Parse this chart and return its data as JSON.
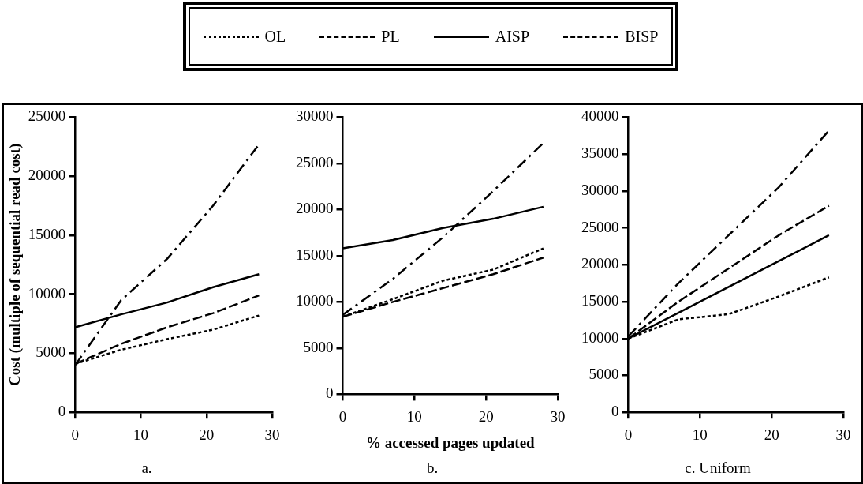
{
  "chart_data": [
    {
      "type": "line",
      "title": "a.",
      "ylabel": "Cost (multiple of sequential read cost)",
      "xlim": [
        0,
        30
      ],
      "xticks": [
        0,
        10,
        20,
        30
      ],
      "ylim": [
        0,
        25000
      ],
      "yticks": [
        0,
        5000,
        10000,
        15000,
        20000,
        25000
      ],
      "grid": false,
      "legend": "top",
      "marker": "none",
      "series": [
        {
          "name": "OL",
          "color": "#000000",
          "line_style": "dotted",
          "x": [
            0,
            7,
            14,
            21,
            28
          ],
          "values": [
            4100,
            5300,
            6200,
            7000,
            8200
          ]
        },
        {
          "name": "PL",
          "color": "#000000",
          "line_style": "dashed",
          "x": [
            0,
            7,
            14,
            21,
            28
          ],
          "values": [
            4100,
            5800,
            7200,
            8400,
            9900
          ]
        },
        {
          "name": "AISP",
          "color": "#000000",
          "line_style": "solid",
          "x": [
            0,
            7,
            14,
            21,
            28
          ],
          "values": [
            7200,
            8300,
            9300,
            10600,
            11700
          ]
        },
        {
          "name": "BISP",
          "color": "#000000",
          "line_style": "dashdot",
          "x": [
            0,
            7,
            14,
            21,
            28
          ],
          "values": [
            4000,
            9500,
            13000,
            17500,
            22700
          ]
        }
      ]
    },
    {
      "type": "line",
      "title": "b.",
      "xlabel": "% accessed pages updated",
      "xlim": [
        0,
        30
      ],
      "xticks": [
        0,
        10,
        20,
        30
      ],
      "ylim": [
        0,
        30000
      ],
      "yticks": [
        0,
        5000,
        10000,
        15000,
        20000,
        25000,
        30000
      ],
      "grid": false,
      "marker": "none",
      "series": [
        {
          "color": "#000000",
          "line_style": "dotted",
          "x": [
            0,
            7,
            14,
            21,
            28
          ],
          "values": [
            8400,
            10300,
            12300,
            13500,
            15800
          ]
        },
        {
          "color": "#000000",
          "line_style": "dashed",
          "x": [
            0,
            7,
            14,
            21,
            28
          ],
          "values": [
            8400,
            10000,
            11500,
            13000,
            14800
          ]
        },
        {
          "color": "#000000",
          "line_style": "solid",
          "x": [
            0,
            7,
            14,
            21,
            28
          ],
          "values": [
            15800,
            16700,
            18000,
            19000,
            20300
          ]
        },
        {
          "color": "#000000",
          "line_style": "dashdot",
          "x": [
            0,
            7,
            14,
            21,
            28
          ],
          "values": [
            8600,
            12500,
            17000,
            22000,
            27200
          ]
        }
      ]
    },
    {
      "type": "line",
      "title": "c. Uniform",
      "xlim": [
        0,
        30
      ],
      "xticks": [
        0,
        10,
        20,
        30
      ],
      "ylim": [
        0,
        40000
      ],
      "yticks": [
        0,
        5000,
        10000,
        15000,
        20000,
        25000,
        30000,
        35000,
        40000
      ],
      "grid": false,
      "marker": "none",
      "series": [
        {
          "color": "#000000",
          "line_style": "dotted",
          "x": [
            0,
            7,
            14,
            21,
            28
          ],
          "values": [
            10000,
            12600,
            13300,
            15700,
            18300
          ]
        },
        {
          "color": "#000000",
          "line_style": "dashed",
          "x": [
            0,
            7,
            14,
            21,
            28
          ],
          "values": [
            10000,
            15000,
            19500,
            24000,
            28000
          ]
        },
        {
          "color": "#000000",
          "line_style": "solid",
          "x": [
            0,
            7,
            14,
            21,
            28
          ],
          "values": [
            10000,
            13500,
            17000,
            20500,
            24000
          ]
        },
        {
          "color": "#000000",
          "line_style": "dashdot",
          "x": [
            0,
            7,
            14,
            21,
            28
          ],
          "values": [
            10300,
            17500,
            24000,
            30500,
            38200
          ]
        }
      ]
    }
  ]
}
